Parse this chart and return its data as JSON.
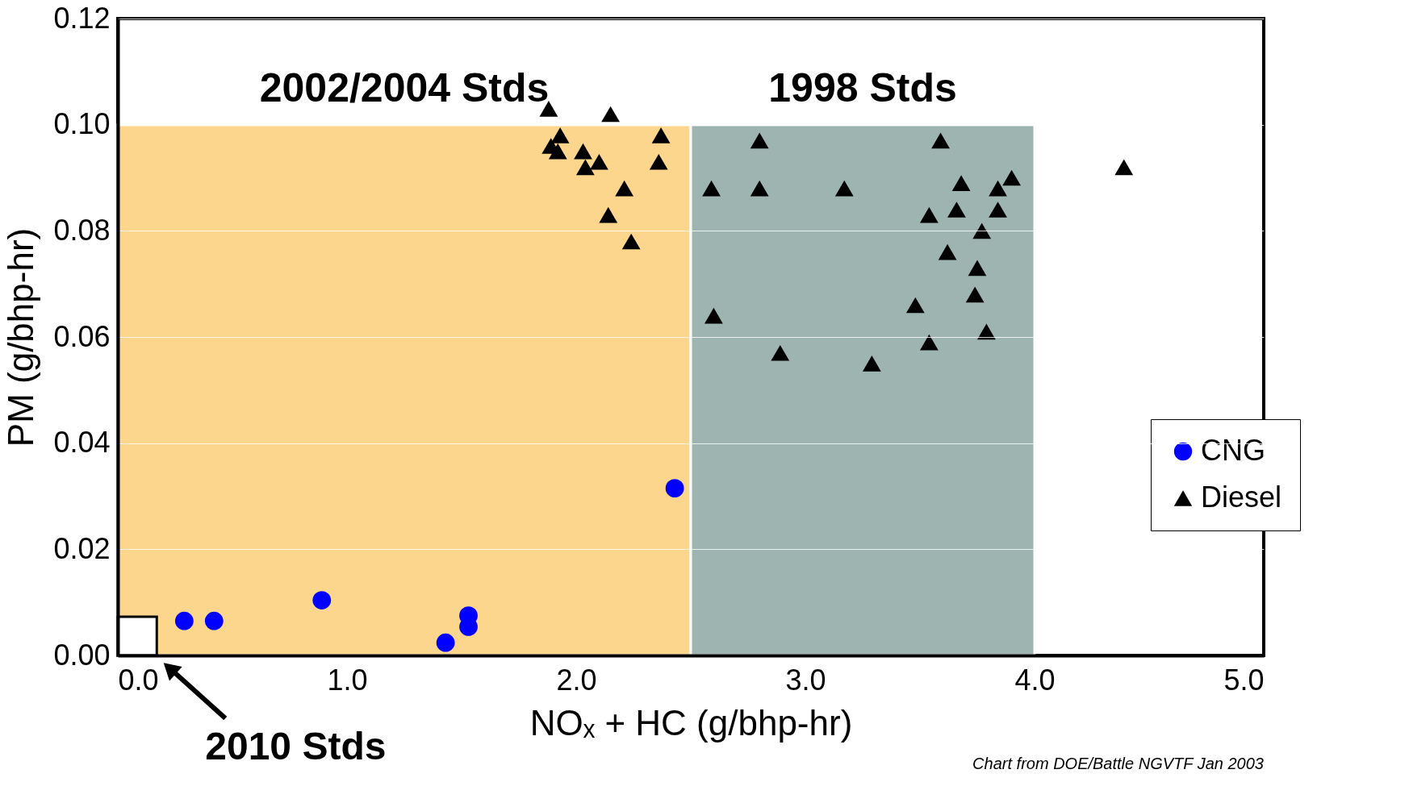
{
  "chart_data": {
    "type": "scatter",
    "xlabel": "NOₓ + HC (g/bhp-hr)",
    "ylabel": "PM (g/bhp-hr)",
    "xlim": [
      0,
      5
    ],
    "ylim": [
      0,
      0.12
    ],
    "xticks": [
      {
        "value": 0,
        "label": "0.0"
      },
      {
        "value": 1,
        "label": "1.0"
      },
      {
        "value": 2,
        "label": "2.0"
      },
      {
        "value": 3,
        "label": "3.0"
      },
      {
        "value": 4,
        "label": "4.0"
      },
      {
        "value": 5,
        "label": "5.0"
      }
    ],
    "yticks": [
      {
        "value": 0,
        "label": "0.00"
      },
      {
        "value": 0.02,
        "label": "0.02"
      },
      {
        "value": 0.04,
        "label": "0.04"
      },
      {
        "value": 0.06,
        "label": "0.06"
      },
      {
        "value": 0.08,
        "label": "0.08"
      },
      {
        "value": 0.1,
        "label": "0.10"
      },
      {
        "value": 0.12,
        "label": "0.12"
      }
    ],
    "grid": "y",
    "legend": "right",
    "series": [
      {
        "name": "CNG",
        "color": "#0000ff",
        "marker": "circle",
        "x": [
          0.29,
          0.42,
          0.89,
          1.43,
          1.53,
          1.53,
          2.43
        ],
        "values": [
          0.0065,
          0.0065,
          0.0104,
          0.0024,
          0.0075,
          0.0054,
          0.0315
        ]
      },
      {
        "name": "Diesel",
        "color": "#000000",
        "marker": "triangle",
        "x": [
          1.88,
          2.15,
          1.89,
          1.93,
          1.92,
          2.03,
          2.1,
          2.04,
          2.37,
          2.36,
          2.21,
          2.14,
          2.24,
          2.59,
          2.8,
          2.8,
          3.17,
          2.6,
          2.89,
          3.29,
          3.59,
          3.68,
          3.66,
          3.54,
          3.84,
          3.9,
          3.84,
          3.77,
          3.62,
          3.75,
          3.74,
          3.48,
          3.54,
          3.79,
          4.39
        ],
        "values": [
          0.103,
          0.102,
          0.096,
          0.098,
          0.095,
          0.095,
          0.093,
          0.092,
          0.098,
          0.093,
          0.088,
          0.083,
          0.078,
          0.088,
          0.097,
          0.088,
          0.088,
          0.064,
          0.057,
          0.055,
          0.097,
          0.089,
          0.084,
          0.083,
          0.088,
          0.09,
          0.084,
          0.08,
          0.076,
          0.073,
          0.068,
          0.066,
          0.059,
          0.061,
          0.092
        ]
      }
    ],
    "ref_lines": [
      {
        "axis": "y",
        "value": 0.1,
        "color": "#ffffff"
      }
    ],
    "bands": [
      {
        "axis": "x",
        "from": 0,
        "to": 2.5,
        "label": "2002/2004 Stds",
        "color": "#fdd68e"
      },
      {
        "axis": "x",
        "from": 2.5,
        "to": 4.0,
        "label": "1998 Stds",
        "color": "#9eb4b0"
      },
      {
        "axis": "x",
        "from": 0,
        "to": 0.17,
        "label": "2010 Stds",
        "color": "#ffffff"
      }
    ],
    "annotations": [
      "Chart from DOE/Battle NGVTF Jan 2003"
    ]
  }
}
